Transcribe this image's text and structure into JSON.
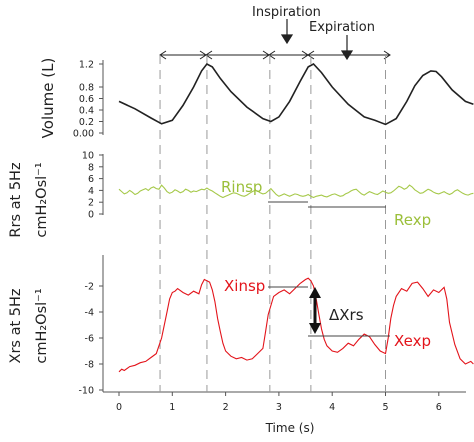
{
  "colors": {
    "volume": "#222222",
    "rrs": "#a6c94a",
    "xrs": "#e3141b",
    "axis": "#555555",
    "guide": "#999999"
  },
  "annotations": {
    "inspiration": "Inspiration",
    "expiration": "Expiration",
    "rinsp": "Rinsp",
    "rexp": "Rexp",
    "xinsp": "Xinsp",
    "xexp": "Xexp",
    "delta_xrs": "ΔXrs"
  },
  "chart_data": [
    {
      "type": "line",
      "name": "volume-panel",
      "ylabel": "Volume (L)",
      "ylim": [
        0,
        1.2
      ],
      "yticks": [
        "1.2",
        "0.8",
        "0.6",
        "0.4",
        "0.2",
        "0.00"
      ],
      "ytick_values": [
        1.2,
        0.8,
        0.6,
        0.4,
        0.2,
        0.0
      ],
      "series": [
        {
          "x": [
            0,
            0.3,
            0.6,
            0.8,
            1.0,
            1.2,
            1.4,
            1.55,
            1.65,
            1.75,
            1.9,
            2.1,
            2.4,
            2.7,
            2.85,
            3.0,
            3.2,
            3.4,
            3.55,
            3.65,
            3.8,
            4.0,
            4.3,
            4.6,
            4.8,
            5.0,
            5.2,
            5.4,
            5.55,
            5.7,
            5.85,
            5.95,
            6.05,
            6.25,
            6.5,
            6.65
          ],
          "y": [
            0.55,
            0.42,
            0.26,
            0.16,
            0.22,
            0.48,
            0.8,
            1.08,
            1.2,
            1.15,
            0.95,
            0.72,
            0.45,
            0.25,
            0.2,
            0.28,
            0.55,
            0.9,
            1.15,
            1.2,
            1.05,
            0.8,
            0.5,
            0.28,
            0.22,
            0.15,
            0.25,
            0.55,
            0.82,
            1.0,
            1.08,
            1.07,
            0.98,
            0.75,
            0.55,
            0.5
          ]
        }
      ]
    },
    {
      "type": "line",
      "name": "rrs-panel",
      "ylabel": "Rrs at 5Hz",
      "ylabel2": "cmH₂Osl⁻¹",
      "ylim": [
        0,
        10
      ],
      "yticks": [
        "10",
        "8",
        "6",
        "4",
        "2",
        "0"
      ],
      "ytick_values": [
        10,
        8,
        6,
        4,
        2,
        0
      ],
      "series": [
        {
          "x": [
            0,
            0.05,
            0.1,
            0.15,
            0.2,
            0.25,
            0.3,
            0.35,
            0.4,
            0.45,
            0.5,
            0.55,
            0.6,
            0.65,
            0.7,
            0.75,
            0.8,
            0.85,
            0.9,
            0.95,
            1.0,
            1.05,
            1.1,
            1.15,
            1.2,
            1.25,
            1.3,
            1.35,
            1.4,
            1.45,
            1.5,
            1.55,
            1.6,
            1.65,
            1.7,
            1.75,
            1.8,
            1.85,
            1.9,
            1.95,
            2.0,
            2.05,
            2.1,
            2.15,
            2.2,
            2.25,
            2.3,
            2.35,
            2.4,
            2.45,
            2.5,
            2.55,
            2.6,
            2.65,
            2.7,
            2.75,
            2.8,
            2.85,
            2.9,
            2.95,
            3.0,
            3.05,
            3.1,
            3.15,
            3.2,
            3.25,
            3.3,
            3.35,
            3.4,
            3.45,
            3.5,
            3.55,
            3.6,
            3.65,
            3.7,
            3.75,
            3.8,
            3.85,
            3.9,
            3.95,
            4.0,
            4.05,
            4.1,
            4.15,
            4.2,
            4.25,
            4.3,
            4.35,
            4.4,
            4.45,
            4.5,
            4.55,
            4.6,
            4.65,
            4.7,
            4.75,
            4.8,
            4.85,
            4.9,
            4.95,
            5.0,
            5.05,
            5.1,
            5.15,
            5.2,
            5.25,
            5.3,
            5.35,
            5.4,
            5.45,
            5.5,
            5.55,
            5.6,
            5.65,
            5.7,
            5.75,
            5.8,
            5.85,
            5.9,
            5.95,
            6.0,
            6.05,
            6.1,
            6.15,
            6.2,
            6.25,
            6.3,
            6.35,
            6.4,
            6.45,
            6.5,
            6.55,
            6.6,
            6.65
          ],
          "y": [
            4.2,
            3.8,
            3.4,
            3.6,
            4.0,
            3.7,
            3.3,
            3.5,
            3.9,
            4.1,
            4.3,
            4.0,
            4.4,
            4.6,
            4.3,
            4.2,
            4.9,
            4.4,
            3.8,
            3.5,
            3.7,
            4.1,
            3.9,
            3.6,
            3.8,
            4.2,
            4.0,
            3.7,
            3.9,
            3.8,
            4.0,
            4.2,
            4.1,
            4.4,
            4.1,
            3.9,
            3.6,
            3.3,
            3.0,
            2.8,
            3.0,
            3.2,
            3.4,
            3.6,
            3.5,
            3.3,
            3.1,
            3.0,
            3.2,
            3.5,
            3.8,
            4.0,
            3.9,
            3.6,
            3.4,
            3.5,
            3.9,
            4.3,
            3.8,
            3.3,
            3.0,
            3.2,
            3.4,
            3.2,
            3.0,
            3.2,
            3.4,
            3.3,
            3.1,
            3.0,
            3.1,
            3.3,
            3.0,
            2.8,
            3.0,
            3.1,
            3.2,
            3.0,
            2.9,
            3.1,
            3.3,
            3.4,
            3.2,
            3.0,
            3.1,
            3.4,
            3.6,
            3.9,
            4.1,
            4.2,
            3.8,
            3.4,
            3.2,
            3.5,
            3.8,
            3.6,
            3.4,
            3.3,
            3.6,
            3.9,
            3.7,
            3.5,
            3.6,
            3.9,
            4.3,
            4.7,
            4.5,
            4.2,
            4.4,
            4.9,
            4.6,
            4.1,
            3.8,
            3.5,
            3.6,
            3.9,
            4.2,
            4.0,
            3.7,
            3.5,
            3.4,
            3.6,
            3.8,
            3.5,
            3.3,
            3.5,
            3.9,
            4.1,
            3.8,
            3.5,
            3.3,
            3.2,
            3.4,
            3.5
          ]
        }
      ]
    },
    {
      "type": "line",
      "name": "xrs-panel",
      "ylabel": "Xrs at 5Hz",
      "ylabel2": "cmH₂Osl⁻¹",
      "xlabel": "Time (s)",
      "ylim": [
        -10,
        0
      ],
      "xlim": [
        -0.2,
        6.65
      ],
      "xticks": [
        "0",
        "1",
        "2",
        "3",
        "4",
        "5",
        "6"
      ],
      "xtick_values": [
        0,
        1,
        2,
        3,
        4,
        5,
        6
      ],
      "yticks": [
        "-2",
        "-4",
        "-6",
        "-8",
        "-10"
      ],
      "ytick_values": [
        -2,
        -4,
        -6,
        -8,
        -10
      ],
      "series": [
        {
          "x": [
            0,
            0.05,
            0.1,
            0.2,
            0.3,
            0.4,
            0.5,
            0.6,
            0.7,
            0.8,
            0.85,
            0.9,
            0.95,
            1.0,
            1.05,
            1.1,
            1.2,
            1.3,
            1.4,
            1.5,
            1.55,
            1.6,
            1.7,
            1.75,
            1.8,
            1.85,
            1.9,
            1.95,
            2.0,
            2.1,
            2.2,
            2.3,
            2.4,
            2.5,
            2.6,
            2.7,
            2.75,
            2.8,
            2.85,
            2.9,
            3.0,
            3.1,
            3.2,
            3.3,
            3.4,
            3.5,
            3.55,
            3.6,
            3.65,
            3.7,
            3.75,
            3.8,
            3.85,
            3.9,
            4.0,
            4.1,
            4.2,
            4.3,
            4.4,
            4.5,
            4.6,
            4.7,
            4.8,
            4.9,
            5.0,
            5.05,
            5.1,
            5.15,
            5.2,
            5.3,
            5.4,
            5.5,
            5.6,
            5.7,
            5.8,
            5.9,
            6.0,
            6.1,
            6.15,
            6.2,
            6.3,
            6.4,
            6.5,
            6.6,
            6.65
          ],
          "y": [
            -8.6,
            -8.4,
            -8.5,
            -8.2,
            -8.1,
            -7.9,
            -7.8,
            -7.5,
            -7.2,
            -6.0,
            -5.0,
            -4.0,
            -3.0,
            -2.5,
            -2.4,
            -2.2,
            -2.5,
            -2.7,
            -2.4,
            -2.6,
            -1.9,
            -1.5,
            -1.7,
            -2.3,
            -3.2,
            -4.5,
            -5.5,
            -6.4,
            -7.0,
            -7.4,
            -7.6,
            -7.5,
            -7.7,
            -7.6,
            -7.2,
            -6.8,
            -5.5,
            -4.2,
            -3.5,
            -2.8,
            -2.5,
            -2.3,
            -2.6,
            -2.2,
            -1.8,
            -1.5,
            -1.4,
            -1.6,
            -2.0,
            -3.0,
            -4.2,
            -5.3,
            -6.1,
            -6.6,
            -7.0,
            -7.1,
            -6.8,
            -6.4,
            -6.6,
            -6.1,
            -5.7,
            -5.9,
            -6.5,
            -7.0,
            -7.2,
            -6.0,
            -4.5,
            -3.5,
            -2.8,
            -2.2,
            -2.4,
            -1.8,
            -1.7,
            -2.2,
            -2.8,
            -2.3,
            -2.5,
            -2.1,
            -3.0,
            -4.8,
            -6.5,
            -7.6,
            -8.0,
            -7.8,
            -8.0
          ]
        }
      ]
    }
  ]
}
